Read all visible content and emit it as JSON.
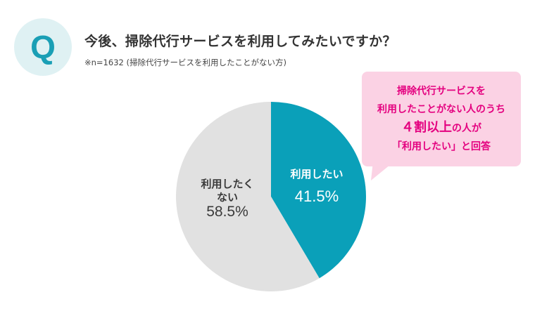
{
  "question": {
    "badge_letter": "Q",
    "title": "今後、掃除代行サービスを利用してみたいですか？",
    "note": "※n=1632 (掃除代行サービスを利用したことがない方)"
  },
  "colors": {
    "badge_bg": "#dff1f3",
    "badge_letter": "#1a9fb5",
    "slice_want": "#0aa0b9",
    "slice_not_want": "#e1e1e1",
    "label_light": "#ffffff",
    "label_dark": "#3a3a3a",
    "callout_bg": "#fbd2e4",
    "callout_text": "#e4007f"
  },
  "chart_data": {
    "type": "pie",
    "slices": [
      {
        "label": "利用したい",
        "value": 41.5,
        "value_label": "41.5%"
      },
      {
        "label": "利用したく\nない",
        "value": 58.5,
        "value_label": "58.5%"
      }
    ],
    "start_angle_deg": 0,
    "direction": "clockwise"
  },
  "callout": {
    "line1": "掃除代行サービスを",
    "line2": "利用したことがない人のうち",
    "line3_big": "４割以上",
    "line3_rest": "の人が",
    "line4": "「利用したい」と回答"
  }
}
